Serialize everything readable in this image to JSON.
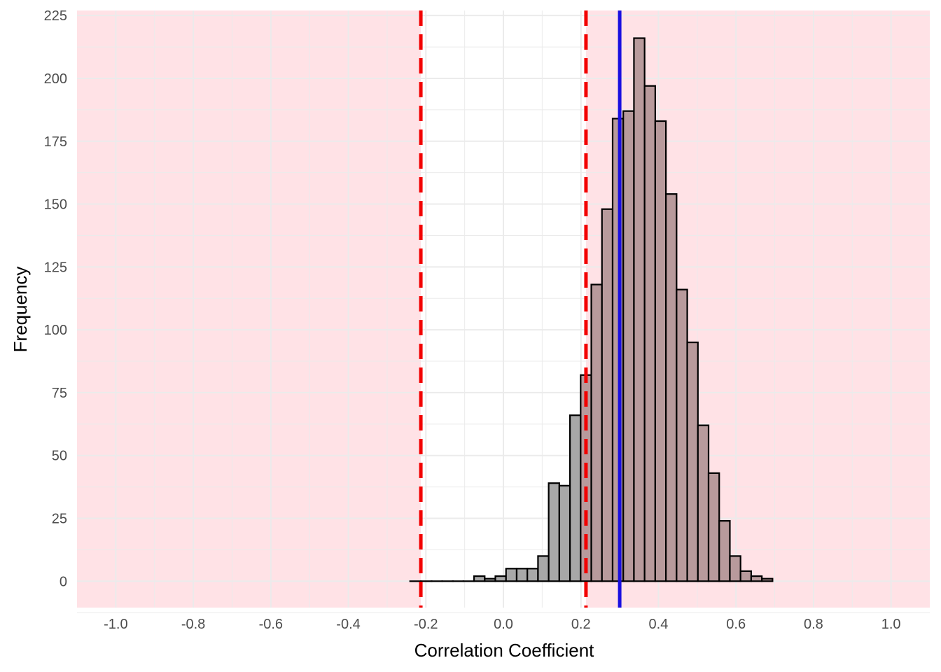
{
  "chart_data": {
    "type": "bar",
    "title": "",
    "xlabel": "Correlation Coefficient",
    "ylabel": "Frequency",
    "xlim": [
      -1.1,
      1.1
    ],
    "ylim": [
      -10.5,
      227
    ],
    "x_ticks": [
      "-1.0",
      "-0.8",
      "-0.6",
      "-0.4",
      "-0.2",
      "0.0",
      "0.2",
      "0.4",
      "0.6",
      "0.8",
      "1.0"
    ],
    "y_ticks": [
      "0",
      "25",
      "50",
      "75",
      "100",
      "125",
      "150",
      "175",
      "200",
      "225"
    ],
    "bin_width": 0.0275,
    "bins": [
      {
        "x": -0.227,
        "count": 0
      },
      {
        "x": -0.199,
        "count": 0
      },
      {
        "x": -0.172,
        "count": 0
      },
      {
        "x": -0.144,
        "count": 0
      },
      {
        "x": -0.117,
        "count": 0
      },
      {
        "x": -0.0895,
        "count": 0
      },
      {
        "x": -0.062,
        "count": 2
      },
      {
        "x": -0.0345,
        "count": 1
      },
      {
        "x": -0.007,
        "count": 2
      },
      {
        "x": 0.0205,
        "count": 5
      },
      {
        "x": 0.048,
        "count": 5
      },
      {
        "x": 0.0755,
        "count": 5
      },
      {
        "x": 0.103,
        "count": 10
      },
      {
        "x": 0.1305,
        "count": 39
      },
      {
        "x": 0.158,
        "count": 38
      },
      {
        "x": 0.1855,
        "count": 66
      },
      {
        "x": 0.213,
        "count": 82
      },
      {
        "x": 0.2405,
        "count": 118
      },
      {
        "x": 0.268,
        "count": 148
      },
      {
        "x": 0.2955,
        "count": 184
      },
      {
        "x": 0.323,
        "count": 187
      },
      {
        "x": 0.3505,
        "count": 216
      },
      {
        "x": 0.378,
        "count": 197
      },
      {
        "x": 0.4055,
        "count": 183
      },
      {
        "x": 0.433,
        "count": 154
      },
      {
        "x": 0.4605,
        "count": 116
      },
      {
        "x": 0.488,
        "count": 95
      },
      {
        "x": 0.5155,
        "count": 62
      },
      {
        "x": 0.543,
        "count": 43
      },
      {
        "x": 0.5705,
        "count": 24
      },
      {
        "x": 0.598,
        "count": 10
      },
      {
        "x": 0.6255,
        "count": 4
      },
      {
        "x": 0.653,
        "count": 2
      },
      {
        "x": 0.6805,
        "count": 1
      }
    ],
    "highlight_threshold": 0.213,
    "critical_values": [
      -0.213,
      0.213
    ],
    "observed_value": 0.3,
    "rejection_regions": [
      [
        -1.1,
        -0.213
      ],
      [
        0.213,
        1.1
      ]
    ],
    "grid": true,
    "legend": "none"
  },
  "colors": {
    "bar_fill": "#a8a8a8",
    "bar_fill_significant": "#b89a9c",
    "bar_outline": "#000000",
    "rejection_region": "#ffe2e6",
    "critical_line": "#f20000",
    "observed_line": "#1a0fe0",
    "gridline": "#ebebeb"
  }
}
